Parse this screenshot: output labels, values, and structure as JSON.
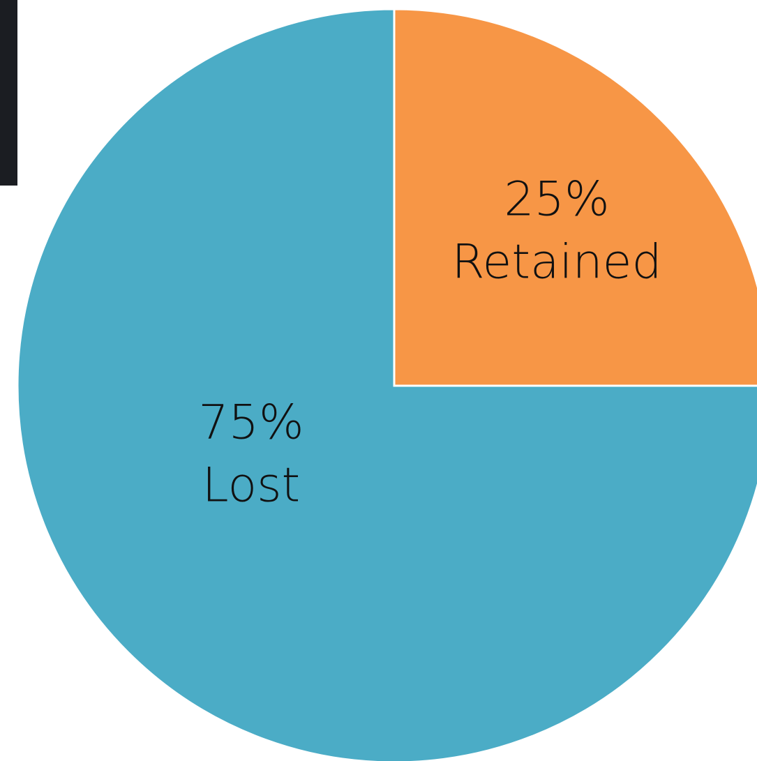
{
  "chart_data": {
    "type": "pie",
    "categories": [
      "Retained",
      "Lost"
    ],
    "values": [
      25,
      75
    ],
    "value_labels": [
      "25%",
      "75%"
    ],
    "colors": [
      "#f79646",
      "#4bacc6"
    ]
  }
}
